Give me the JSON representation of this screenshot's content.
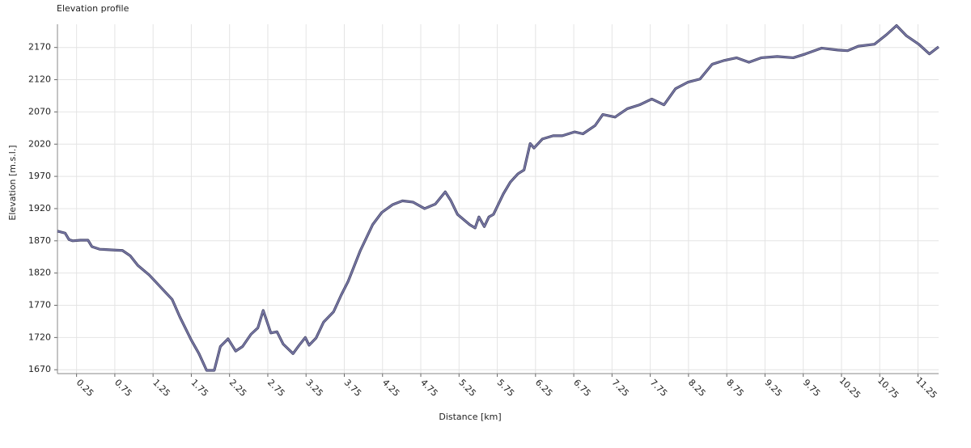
{
  "chart_data": {
    "type": "line",
    "title": "Elevation profile",
    "x_label": "Distance [km]",
    "y_label": "Elevation [m.s.l.]",
    "x": [
      0,
      0.1,
      0.15,
      0.2,
      0.3,
      0.4,
      0.45,
      0.55,
      0.7,
      0.85,
      0.95,
      1.05,
      1.2,
      1.35,
      1.5,
      1.6,
      1.75,
      1.85,
      1.95,
      2.05,
      2.13,
      2.23,
      2.33,
      2.42,
      2.53,
      2.62,
      2.69,
      2.79,
      2.87,
      2.95,
      3.08,
      3.16,
      3.24,
      3.29,
      3.38,
      3.48,
      3.61,
      3.71,
      3.8,
      3.96,
      4.12,
      4.24,
      4.38,
      4.51,
      4.65,
      4.8,
      4.94,
      5.07,
      5.14,
      5.23,
      5.39,
      5.46,
      5.51,
      5.58,
      5.64,
      5.7,
      5.83,
      5.92,
      6.02,
      6.1,
      6.18,
      6.23,
      6.34,
      6.48,
      6.6,
      6.76,
      6.87,
      7.03,
      7.13,
      7.29,
      7.45,
      7.61,
      7.77,
      7.93,
      8.08,
      8.24,
      8.4,
      8.56,
      8.72,
      8.88,
      9.04,
      9.2,
      9.41,
      9.62,
      9.78,
      9.99,
      10.2,
      10.33,
      10.47,
      10.68,
      10.84,
      10.97,
      11.1,
      11.26,
      11.4,
      11.52
    ],
    "series": [
      {
        "color": "#7a7aa8",
        "values": [
          1885,
          1882,
          1872,
          1870,
          1871,
          1871,
          1861,
          1857,
          1856,
          1855,
          1847,
          1832,
          1817,
          1798,
          1779,
          1752,
          1716,
          1695,
          1669,
          1669,
          1706,
          1718,
          1699,
          1706,
          1725,
          1735,
          1762,
          1727,
          1729,
          1710,
          1695,
          1708,
          1720,
          1708,
          1719,
          1744,
          1760,
          1786,
          1807,
          1855,
          1895,
          1914,
          1926,
          1932,
          1930,
          1920,
          1927,
          1946,
          1933,
          1911,
          1895,
          1890,
          1907,
          1892,
          1907,
          1911,
          1943,
          1961,
          1974,
          1980,
          2021,
          2014,
          2028,
          2033,
          2033,
          2039,
          2036,
          2049,
          2066,
          2062,
          2075,
          2081,
          2090,
          2081,
          2106,
          2116,
          2121,
          2144,
          2150,
          2154,
          2147,
          2154,
          2156,
          2154,
          2160,
          2169,
          2166,
          2165,
          2172,
          2175,
          2190,
          2204,
          2188,
          2175,
          2160,
          2171
        ]
      }
    ],
    "xlim": [
      0,
      11.52
    ],
    "ylim": [
      1664,
      2206
    ],
    "xticks": [
      0.25,
      0.75,
      1.25,
      1.75,
      2.25,
      2.75,
      3.25,
      3.75,
      4.25,
      4.75,
      5.25,
      5.75,
      6.25,
      6.75,
      7.25,
      7.75,
      8.25,
      8.75,
      9.25,
      9.75,
      10.25,
      10.75,
      11.25
    ],
    "yticks": [
      1670,
      1720,
      1770,
      1820,
      1870,
      1920,
      1970,
      2020,
      2070,
      2120,
      2170
    ],
    "grid": true
  }
}
